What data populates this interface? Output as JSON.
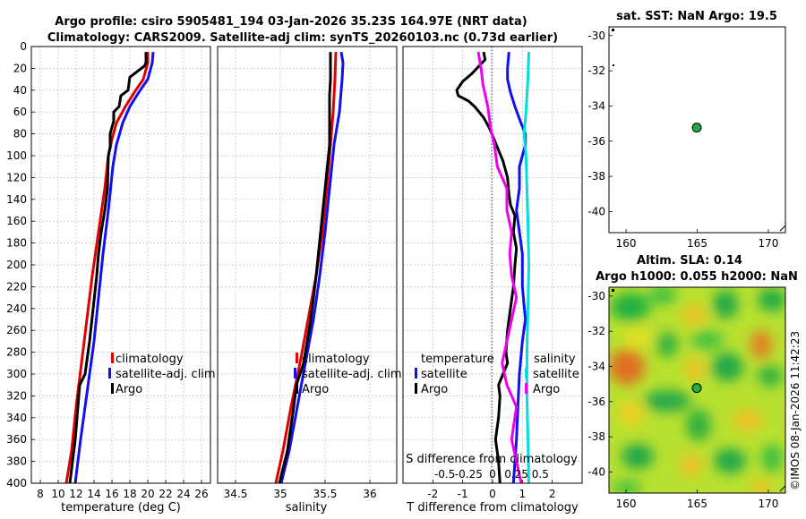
{
  "title": {
    "line1": "Argo profile: csiro 5905481_194 03-Jan-2026 35.23S 164.97E (NRT data)",
    "line2": "Climatology: CARS2009. Satellite-adj clim: synTS_20260103.nc (0.73d earlier)"
  },
  "colors": {
    "climatology": "#e00000",
    "satellite": "#1010f0",
    "argo": "#000000",
    "salinity_sat": "#00dede",
    "salinity_argo": "#ee00ee",
    "marker": "#22aa44"
  },
  "chart_data": [
    {
      "type": "line",
      "name": "temperature",
      "xlabel": "temperature (deg C)",
      "ylabel": "",
      "xlim": [
        7,
        27
      ],
      "ylim": [
        400,
        0
      ],
      "xticks": [
        "8",
        "10",
        "12",
        "14",
        "16",
        "18",
        "20",
        "22",
        "24",
        "26"
      ],
      "yticks": [
        "0",
        "20",
        "40",
        "60",
        "80",
        "100",
        "120",
        "140",
        "160",
        "180",
        "200",
        "220",
        "240",
        "260",
        "280",
        "300",
        "320",
        "340",
        "360",
        "380",
        "400"
      ],
      "legend": [
        "climatology",
        "satellite-adj. clim",
        "Argo"
      ],
      "series": [
        {
          "name": "climatology",
          "points": [
            [
              20.0,
              5
            ],
            [
              20.0,
              15
            ],
            [
              19.5,
              30
            ],
            [
              18.5,
              42
            ],
            [
              17.5,
              55
            ],
            [
              16.5,
              70
            ],
            [
              16.0,
              85
            ],
            [
              15.6,
              100
            ],
            [
              15.2,
              130
            ],
            [
              14.5,
              170
            ],
            [
              13.8,
              210
            ],
            [
              13.2,
              250
            ],
            [
              12.6,
              290
            ],
            [
              12.0,
              330
            ],
            [
              11.5,
              370
            ],
            [
              10.9,
              400
            ]
          ]
        },
        {
          "name": "satellite-adj. clim",
          "points": [
            [
              20.6,
              5
            ],
            [
              20.5,
              15
            ],
            [
              20.0,
              30
            ],
            [
              19.0,
              42
            ],
            [
              18.0,
              55
            ],
            [
              17.2,
              70
            ],
            [
              16.5,
              90
            ],
            [
              16.1,
              110
            ],
            [
              15.6,
              150
            ],
            [
              15.0,
              190
            ],
            [
              14.5,
              230
            ],
            [
              14.0,
              270
            ],
            [
              13.5,
              300
            ],
            [
              13.0,
              330
            ],
            [
              12.5,
              360
            ],
            [
              11.9,
              400
            ]
          ]
        },
        {
          "name": "Argo",
          "points": [
            [
              19.8,
              5
            ],
            [
              19.8,
              15
            ],
            [
              19.6,
              18
            ],
            [
              18.0,
              28
            ],
            [
              17.8,
              40
            ],
            [
              17.0,
              45
            ],
            [
              16.8,
              55
            ],
            [
              16.2,
              60
            ],
            [
              16.2,
              68
            ],
            [
              15.8,
              80
            ],
            [
              15.8,
              92
            ],
            [
              15.6,
              100
            ],
            [
              15.5,
              130
            ],
            [
              15.2,
              150
            ],
            [
              14.8,
              170
            ],
            [
              14.5,
              190
            ],
            [
              14.3,
              210
            ],
            [
              13.9,
              240
            ],
            [
              13.5,
              270
            ],
            [
              13.0,
              300
            ],
            [
              12.4,
              310
            ],
            [
              12.2,
              330
            ],
            [
              11.9,
              360
            ],
            [
              11.6,
              380
            ],
            [
              11.3,
              400
            ]
          ]
        }
      ]
    },
    {
      "type": "line",
      "name": "salinity",
      "xlabel": "salinity",
      "xlim": [
        34.3,
        36.3
      ],
      "ylim": [
        400,
        0
      ],
      "xticks": [
        "34.5",
        "35",
        "35.5",
        "36"
      ],
      "legend": [
        "climatology",
        "satellite-adj. clim",
        "Argo"
      ],
      "series": [
        {
          "name": "climatology",
          "points": [
            [
              35.62,
              5
            ],
            [
              35.61,
              30
            ],
            [
              35.59,
              60
            ],
            [
              35.56,
              90
            ],
            [
              35.52,
              130
            ],
            [
              35.47,
              170
            ],
            [
              35.4,
              210
            ],
            [
              35.31,
              250
            ],
            [
              35.22,
              290
            ],
            [
              35.12,
              330
            ],
            [
              35.03,
              370
            ],
            [
              34.95,
              400
            ]
          ]
        },
        {
          "name": "satellite-adj. clim",
          "points": [
            [
              35.68,
              5
            ],
            [
              35.7,
              15
            ],
            [
              35.69,
              30
            ],
            [
              35.66,
              60
            ],
            [
              35.6,
              90
            ],
            [
              35.55,
              130
            ],
            [
              35.5,
              170
            ],
            [
              35.44,
              210
            ],
            [
              35.37,
              250
            ],
            [
              35.28,
              290
            ],
            [
              35.19,
              330
            ],
            [
              35.1,
              370
            ],
            [
              35.01,
              400
            ]
          ]
        },
        {
          "name": "Argo",
          "points": [
            [
              35.56,
              5
            ],
            [
              35.56,
              30
            ],
            [
              35.55,
              45
            ],
            [
              35.55,
              60
            ],
            [
              35.55,
              90
            ],
            [
              35.5,
              130
            ],
            [
              35.45,
              170
            ],
            [
              35.4,
              210
            ],
            [
              35.34,
              250
            ],
            [
              35.3,
              270
            ],
            [
              35.26,
              290
            ],
            [
              35.18,
              310
            ],
            [
              35.15,
              330
            ],
            [
              35.08,
              370
            ],
            [
              34.99,
              400
            ]
          ]
        }
      ]
    },
    {
      "type": "line",
      "name": "difference",
      "xlabel": "T difference from climatology",
      "xlabel_top": "S difference from climatology",
      "xlim": [
        -3,
        3
      ],
      "ylim": [
        400,
        0
      ],
      "xticks": [
        "-2",
        "-1",
        "0",
        "1",
        "2"
      ],
      "xticks_s": [
        "-0.5",
        "-0.25",
        "0",
        "0.25",
        "0.5"
      ],
      "legend_t": [
        "temperature",
        "satellite",
        "Argo"
      ],
      "legend_s": [
        "salinity",
        "satellite",
        "Argo"
      ],
      "series": [
        {
          "name": "T satellite",
          "points": [
            [
              0.55,
              5
            ],
            [
              0.5,
              20
            ],
            [
              0.5,
              30
            ],
            [
              0.6,
              42
            ],
            [
              0.75,
              55
            ],
            [
              0.95,
              70
            ],
            [
              1.1,
              80
            ],
            [
              1.1,
              90
            ],
            [
              0.9,
              110
            ],
            [
              0.9,
              130
            ],
            [
              0.8,
              150
            ],
            [
              0.9,
              170
            ],
            [
              1.0,
              190
            ],
            [
              1.0,
              220
            ],
            [
              1.1,
              250
            ],
            [
              1.0,
              270
            ],
            [
              0.9,
              300
            ],
            [
              0.85,
              330
            ],
            [
              0.8,
              360
            ],
            [
              0.75,
              380
            ],
            [
              0.7,
              400
            ]
          ]
        },
        {
          "name": "T Argo",
          "points": [
            [
              -0.3,
              5
            ],
            [
              -0.25,
              12
            ],
            [
              -0.7,
              25
            ],
            [
              -1.0,
              32
            ],
            [
              -1.2,
              40
            ],
            [
              -1.15,
              45
            ],
            [
              -0.8,
              50
            ],
            [
              -0.6,
              55
            ],
            [
              -0.3,
              65
            ],
            [
              -0.1,
              75
            ],
            [
              0.05,
              85
            ],
            [
              0.2,
              95
            ],
            [
              0.35,
              105
            ],
            [
              0.5,
              120
            ],
            [
              0.55,
              135
            ],
            [
              0.6,
              145
            ],
            [
              0.75,
              155
            ],
            [
              0.7,
              170
            ],
            [
              0.8,
              185
            ],
            [
              0.75,
              200
            ],
            [
              0.7,
              220
            ],
            [
              0.6,
              240
            ],
            [
              0.5,
              260
            ],
            [
              0.45,
              280
            ],
            [
              0.5,
              290
            ],
            [
              0.35,
              300
            ],
            [
              0.2,
              310
            ],
            [
              0.25,
              320
            ],
            [
              0.2,
              340
            ],
            [
              0.1,
              360
            ],
            [
              0.2,
              380
            ],
            [
              0.25,
              400
            ]
          ]
        },
        {
          "name": "S satellite",
          "points": [
            [
              0.38,
              5
            ],
            [
              0.37,
              30
            ],
            [
              0.35,
              60
            ],
            [
              0.33,
              80
            ],
            [
              0.35,
              100
            ],
            [
              0.36,
              130
            ],
            [
              0.37,
              160
            ],
            [
              0.38,
              200
            ],
            [
              0.37,
              240
            ],
            [
              0.36,
              280
            ],
            [
              0.36,
              320
            ],
            [
              0.37,
              360
            ],
            [
              0.38,
              400
            ]
          ]
        },
        {
          "name": "S Argo",
          "points": [
            [
              -0.15,
              5
            ],
            [
              -0.12,
              20
            ],
            [
              -0.1,
              35
            ],
            [
              -0.05,
              55
            ],
            [
              -0.02,
              75
            ],
            [
              0.02,
              90
            ],
            [
              0.05,
              110
            ],
            [
              0.15,
              130
            ],
            [
              0.15,
              150
            ],
            [
              0.2,
              170
            ],
            [
              0.18,
              190
            ],
            [
              0.2,
              210
            ],
            [
              0.25,
              230
            ],
            [
              0.2,
              250
            ],
            [
              0.15,
              270
            ],
            [
              0.1,
              290
            ],
            [
              0.15,
              310
            ],
            [
              0.25,
              330
            ],
            [
              0.2,
              360
            ],
            [
              0.25,
              380
            ],
            [
              0.3,
              400
            ]
          ]
        }
      ]
    },
    {
      "type": "scatter",
      "name": "sst_map",
      "title": "sat. SST: NaN Argo: 19.5",
      "xlim": [
        158.8,
        171.2
      ],
      "ylim": [
        -41.2,
        -29.5
      ],
      "xticks": [
        "160",
        "165",
        "170"
      ],
      "yticks": [
        "-30",
        "-32",
        "-34",
        "-36",
        "-38",
        "-40"
      ],
      "points": [
        [
          164.97,
          -35.23
        ]
      ]
    },
    {
      "type": "heatmap",
      "name": "sla_map",
      "title_line1": "Altim. SLA: 0.14",
      "title_line2": "Argo h1000: 0.055 h2000: NaN",
      "xlim": [
        158.8,
        171.2
      ],
      "ylim": [
        -41.2,
        -29.5
      ],
      "xticks": [
        "160",
        "165",
        "170"
      ],
      "yticks": [
        "-30",
        "-32",
        "-34",
        "-36",
        "-38",
        "-40"
      ],
      "points": [
        [
          164.97,
          -35.23
        ]
      ]
    }
  ],
  "timestamp": "©IMOS 08-Jan-2026 11:42:23"
}
